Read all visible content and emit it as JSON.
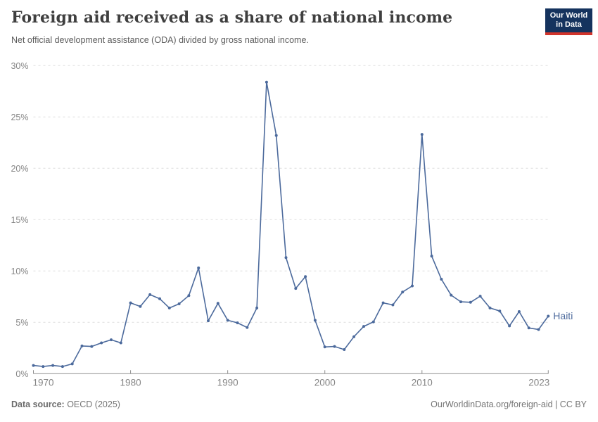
{
  "header": {
    "title": "Foreign aid received as a share of national income",
    "subtitle": "Net official development assistance (ODA) divided by gross national income.",
    "logo": {
      "line1": "Our World",
      "line2": "in Data"
    }
  },
  "footer": {
    "source_label": "Data source:",
    "source_value": " OECD (2025)",
    "right": "OurWorldinData.org/foreign-aid | CC BY"
  },
  "colors": {
    "line": "#4c6a9c",
    "grid": "#dddddd",
    "axis": "#8f8f8f",
    "tick_label": "#858585",
    "logo_bg": "#15335e",
    "logo_red": "#d1342b"
  },
  "chart_data": {
    "type": "line",
    "title": "Foreign aid received as a share of national income",
    "subtitle": "Net official development assistance (ODA) divided by gross national income.",
    "xlabel": "",
    "ylabel": "",
    "ylim": [
      0,
      30
    ],
    "yticks": [
      0,
      5,
      10,
      15,
      20,
      25,
      30
    ],
    "ytick_suffix": "%",
    "xticks": [
      1970,
      1980,
      1990,
      2000,
      2010,
      2023
    ],
    "grid": "horizontal-dashed",
    "legend_position": "end-of-line",
    "series": [
      {
        "name": "Haiti",
        "color": "#4c6a9c",
        "x": [
          1970,
          1971,
          1972,
          1973,
          1974,
          1975,
          1976,
          1977,
          1978,
          1979,
          1980,
          1981,
          1982,
          1983,
          1984,
          1985,
          1986,
          1987,
          1988,
          1989,
          1990,
          1991,
          1992,
          1993,
          1994,
          1995,
          1996,
          1997,
          1998,
          1999,
          2000,
          2001,
          2002,
          2003,
          2004,
          2005,
          2006,
          2007,
          2008,
          2009,
          2010,
          2011,
          2012,
          2013,
          2014,
          2015,
          2016,
          2017,
          2018,
          2019,
          2020,
          2021,
          2022,
          2023
        ],
        "values": [
          0.8,
          0.7,
          0.8,
          0.7,
          0.95,
          2.7,
          2.65,
          3.0,
          3.3,
          3.0,
          6.9,
          6.55,
          7.7,
          7.3,
          6.4,
          6.8,
          7.6,
          10.3,
          5.15,
          6.85,
          5.2,
          4.95,
          4.5,
          6.4,
          28.4,
          23.2,
          11.3,
          8.3,
          9.45,
          5.2,
          2.6,
          2.65,
          2.35,
          3.6,
          4.6,
          5.05,
          6.9,
          6.7,
          7.95,
          8.55,
          23.3,
          11.45,
          9.2,
          7.65,
          7.0,
          6.95,
          7.55,
          6.4,
          6.1,
          4.65,
          6.05,
          4.45,
          4.3,
          5.6
        ]
      }
    ]
  }
}
